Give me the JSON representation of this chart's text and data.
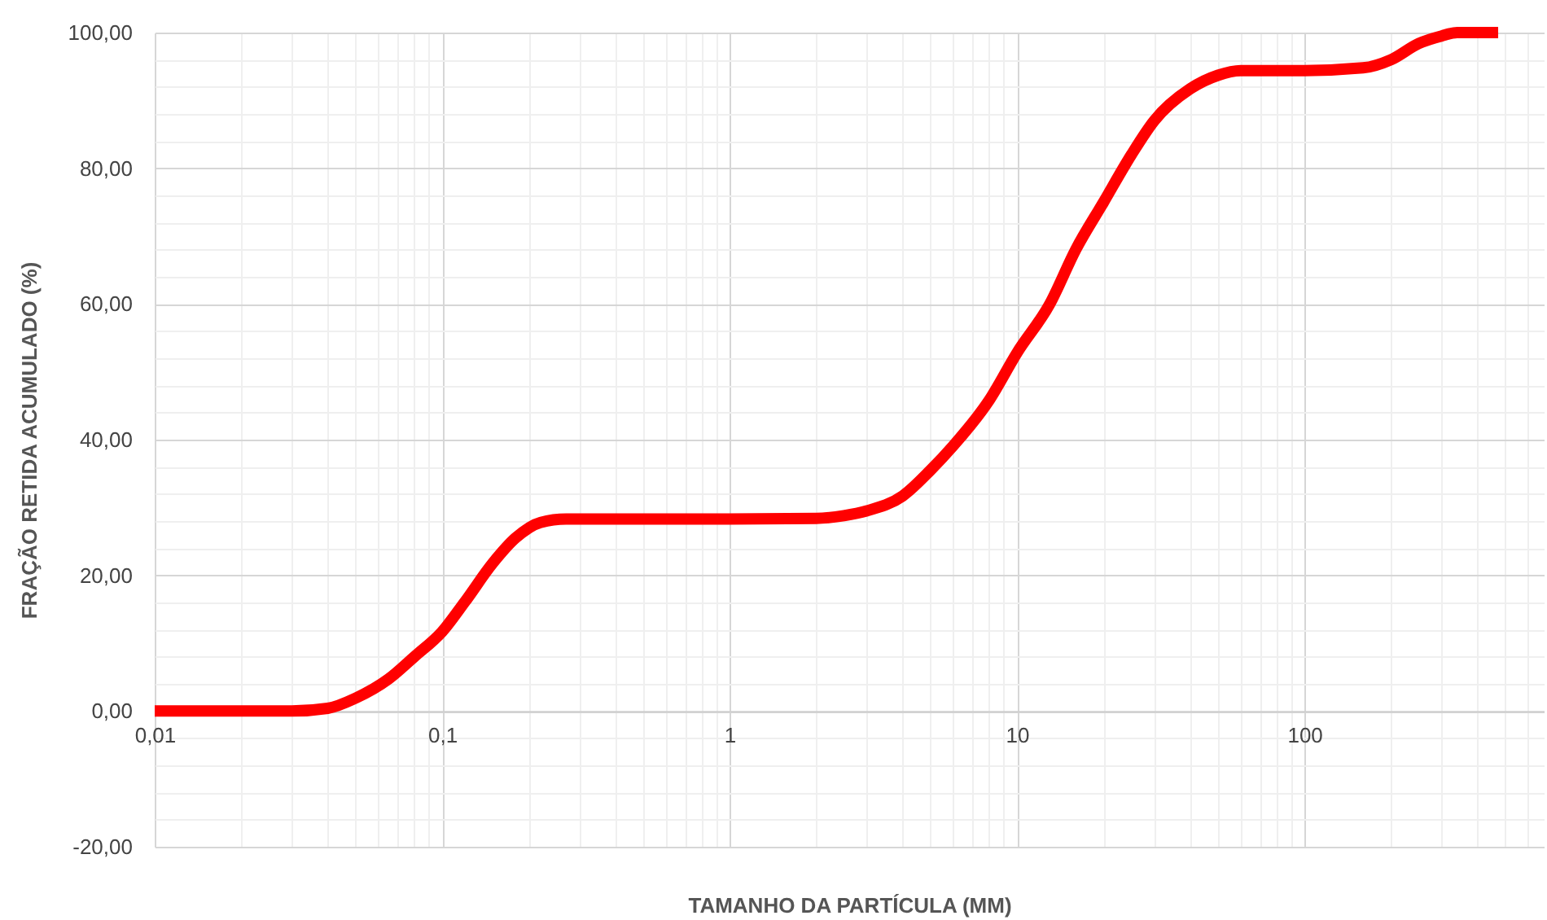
{
  "chart_data": {
    "type": "line",
    "xlabel": "TAMANHO DA PARTÍCULA (MM)",
    "ylabel": "FRAÇÃO RETIDA ACUMULADO (%)",
    "x": [
      0.01,
      0.02,
      0.03,
      0.04,
      0.05,
      0.065,
      0.08,
      0.1,
      0.12,
      0.15,
      0.18,
      0.22,
      0.27,
      0.5,
      1,
      2,
      2.5,
      3,
      4,
      5,
      6,
      8,
      10,
      13,
      16,
      20,
      25,
      30,
      40,
      50,
      60,
      100,
      160,
      200,
      250,
      300,
      340,
      472
    ],
    "series": [
      {
        "color": "#ff0000",
        "values": [
          0,
          0,
          0,
          0.4,
          1.9,
          4.7,
          8,
          11.7,
          16.1,
          21.8,
          25.5,
          27.8,
          28.3,
          28.3,
          28.3,
          28.4,
          28.8,
          29.5,
          31.7,
          35.5,
          39.1,
          45.8,
          52.8,
          60,
          68,
          75,
          82,
          87,
          91.7,
          93.7,
          94.4,
          94.4,
          94.8,
          96,
          98.4,
          99.5,
          100,
          100
        ]
      }
    ],
    "log": "x",
    "grid": true,
    "xlim": [
      0.01,
      680
    ],
    "ylim": [
      -20,
      100
    ],
    "xticks": [
      {
        "value": 0.01,
        "label": "0,01"
      },
      {
        "value": 0.02,
        "label": null
      },
      {
        "value": 0.03,
        "label": null
      },
      {
        "value": 0.04,
        "label": null
      },
      {
        "value": 0.05,
        "label": null
      },
      {
        "value": 0.06,
        "label": null
      },
      {
        "value": 0.07,
        "label": null
      },
      {
        "value": 0.08,
        "label": null
      },
      {
        "value": 0.09,
        "label": null
      },
      {
        "value": 0.1,
        "label": "0,1"
      },
      {
        "value": 0.2,
        "label": null
      },
      {
        "value": 0.3,
        "label": null
      },
      {
        "value": 0.4,
        "label": null
      },
      {
        "value": 0.5,
        "label": null
      },
      {
        "value": 0.6,
        "label": null
      },
      {
        "value": 0.7,
        "label": null
      },
      {
        "value": 0.8,
        "label": null
      },
      {
        "value": 0.9,
        "label": null
      },
      1,
      {
        "value": 2,
        "label": null
      },
      {
        "value": 3,
        "label": null
      },
      {
        "value": 4,
        "label": null
      },
      {
        "value": 5,
        "label": null
      },
      {
        "value": 6,
        "label": null
      },
      {
        "value": 7,
        "label": null
      },
      {
        "value": 8,
        "label": null
      },
      {
        "value": 9,
        "label": null
      },
      10,
      {
        "value": 20,
        "label": null
      },
      {
        "value": 30,
        "label": null
      },
      {
        "value": 40,
        "label": null
      },
      {
        "value": 50,
        "label": null
      },
      {
        "value": 60,
        "label": null
      },
      {
        "value": 70,
        "label": null
      },
      {
        "value": 80,
        "label": null
      },
      {
        "value": 90,
        "label": null
      },
      100,
      {
        "value": 200,
        "label": null
      },
      {
        "value": 300,
        "label": null
      },
      {
        "value": 400,
        "label": null
      },
      {
        "value": 500,
        "label": null
      },
      {
        "value": 600,
        "label": null
      }
    ],
    "yticks": [
      {
        "value": -20,
        "label": "-20,00"
      },
      {
        "value": -16,
        "label": null
      },
      {
        "value": -12,
        "label": null
      },
      {
        "value": -8,
        "label": null
      },
      {
        "value": -4,
        "label": null
      },
      {
        "value": 0,
        "label": "0,00"
      },
      {
        "value": 4,
        "label": null
      },
      {
        "value": 8,
        "label": null
      },
      {
        "value": 12,
        "label": null
      },
      {
        "value": 16,
        "label": null
      },
      {
        "value": 20,
        "label": "20,00"
      },
      {
        "value": 24,
        "label": null
      },
      {
        "value": 28,
        "label": null
      },
      {
        "value": 32,
        "label": null
      },
      {
        "value": 36,
        "label": null
      },
      {
        "value": 40,
        "label": "40,00"
      },
      {
        "value": 44,
        "label": null
      },
      {
        "value": 48,
        "label": null
      },
      {
        "value": 52,
        "label": null
      },
      {
        "value": 56,
        "label": null
      },
      {
        "value": 60,
        "label": "60,00"
      },
      {
        "value": 64,
        "label": null
      },
      {
        "value": 68,
        "label": null
      },
      {
        "value": 72,
        "label": null
      },
      {
        "value": 76,
        "label": null
      },
      {
        "value": 80,
        "label": "80,00"
      },
      {
        "value": 84,
        "label": null
      },
      {
        "value": 88,
        "label": null
      },
      {
        "value": 92,
        "label": null
      },
      {
        "value": 96,
        "label": null
      },
      {
        "value": 100,
        "label": "100,00"
      }
    ]
  }
}
